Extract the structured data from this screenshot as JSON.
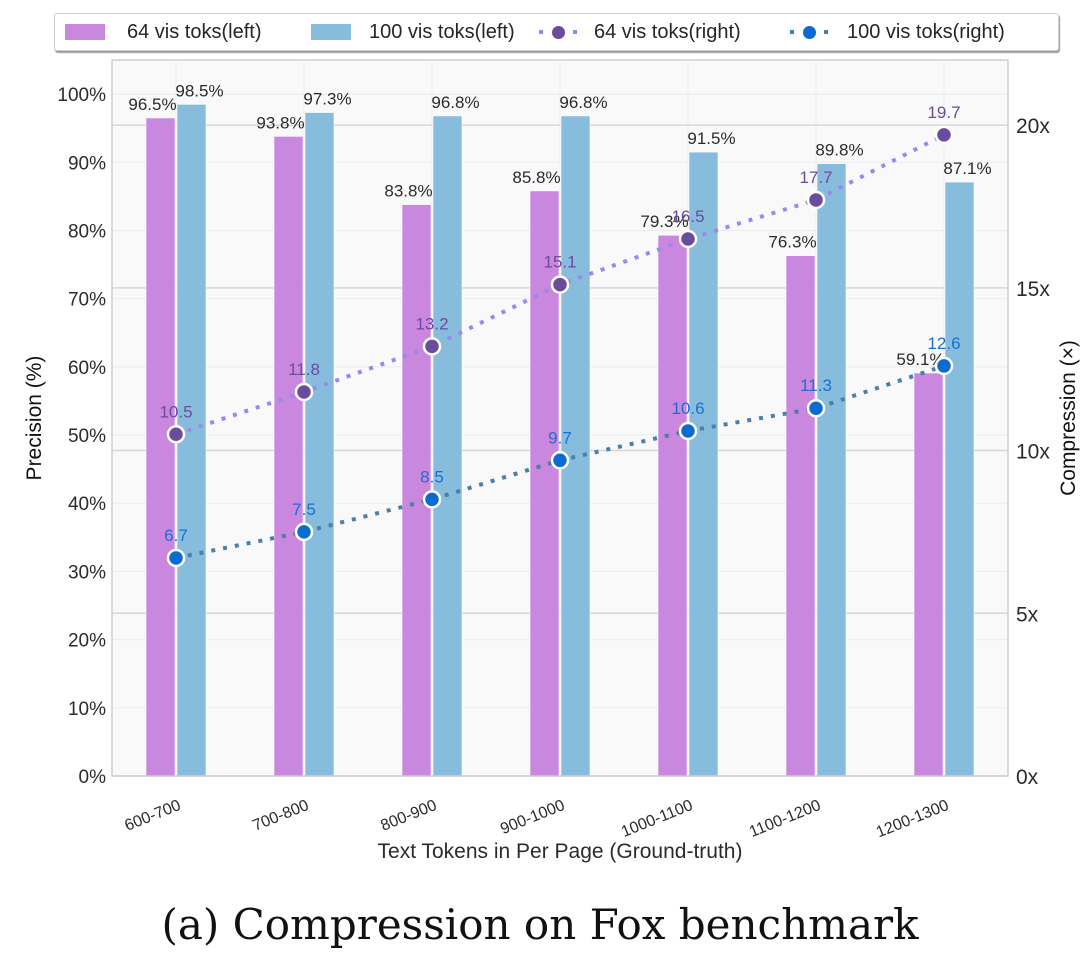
{
  "chart_data": {
    "type": "bar",
    "categories": [
      "600-700",
      "700-800",
      "800-900",
      "900-1000",
      "1000-1100",
      "1100-1200",
      "1200-1300"
    ],
    "series": [
      {
        "name": "64 vis toks(left)",
        "kind": "bar",
        "axis": "left",
        "color": "#c987de",
        "values": [
          96.5,
          93.8,
          83.8,
          85.8,
          79.3,
          76.3,
          59.1
        ],
        "labels": [
          "96.5%",
          "93.8%",
          "83.8%",
          "85.8%",
          "79.3%",
          "76.3%",
          "59.1%"
        ]
      },
      {
        "name": "100 vis toks(left)",
        "kind": "bar",
        "axis": "left",
        "color": "#88bcdd",
        "values": [
          98.5,
          97.3,
          96.8,
          96.8,
          91.5,
          89.8,
          87.1
        ],
        "labels": [
          "98.5%",
          "97.3%",
          "96.8%",
          "96.8%",
          "91.5%",
          "89.8%",
          "87.1%"
        ]
      },
      {
        "name": "64 vis toks(right)",
        "kind": "line",
        "axis": "right",
        "line_color": "#9b88ee",
        "marker_color": "#6a4c9c",
        "label_color": "#6a4c9c",
        "values": [
          10.5,
          11.8,
          13.2,
          15.1,
          16.5,
          17.7,
          19.7
        ],
        "labels": [
          "10.5",
          "11.8",
          "13.2",
          "15.1",
          "16.5",
          "17.7",
          "19.7"
        ]
      },
      {
        "name": "100 vis toks(right)",
        "kind": "line",
        "axis": "right",
        "line_color": "#4a7fa8",
        "marker_color": "#0a6bd0",
        "label_color": "#1a6fd0",
        "values": [
          6.7,
          7.5,
          8.5,
          9.7,
          10.6,
          11.3,
          12.6
        ],
        "labels": [
          "6.7",
          "7.5",
          "8.5",
          "9.7",
          "10.6",
          "11.3",
          "12.6"
        ]
      }
    ],
    "title": "",
    "xlabel": "Text Tokens in Per Page (Ground-truth)",
    "ylabel": "Precision (%)",
    "ylabel_right": "Compression (×)",
    "ylim": [
      0,
      105
    ],
    "ylim_right": [
      0,
      22
    ],
    "yticks": [
      0,
      10,
      20,
      30,
      40,
      50,
      60,
      70,
      80,
      90,
      100
    ],
    "ytick_labels": [
      "0%",
      "10%",
      "20%",
      "30%",
      "40%",
      "50%",
      "60%",
      "70%",
      "80%",
      "90%",
      "100%"
    ],
    "yticks_right": [
      0,
      5,
      10,
      15,
      20
    ],
    "ytick_labels_right": [
      "0x",
      "5x",
      "10x",
      "15x",
      "20x"
    ],
    "grid": true,
    "legend_position": "top"
  },
  "legend": {
    "items": [
      {
        "label": "64 vis toks(left)"
      },
      {
        "label": "100 vis toks(left)"
      },
      {
        "label": "64 vis toks(right)"
      },
      {
        "label": "100 vis toks(right)"
      }
    ]
  },
  "caption": "(a)  Compression on Fox benchmark"
}
